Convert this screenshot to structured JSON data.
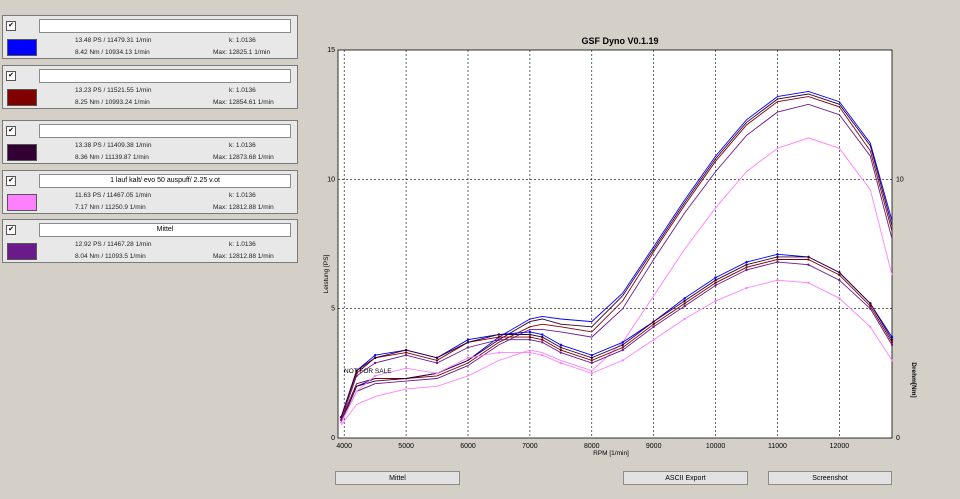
{
  "runs": [
    {
      "checked": "✔",
      "name": "",
      "color": "#0000ff",
      "ps": "13.48 PS / 11479.31 1/min",
      "nm": "8.42 Nm / 10934.13 1/min",
      "k": "k: 1.0136",
      "max": "Max: 12825.1 1/min"
    },
    {
      "checked": "✔",
      "name": "",
      "color": "#800000",
      "ps": "13.23 PS / 11521.55 1/min",
      "nm": "8.25 Nm / 10993.24 1/min",
      "k": "k: 1.0136",
      "max": "Max: 12854.61 1/min"
    },
    {
      "checked": "✔",
      "name": "",
      "color": "#330033",
      "ps": "13.38 PS / 11409.38 1/min",
      "nm": "8.36 Nm / 11139.87 1/min",
      "k": "k: 1.0136",
      "max": "Max: 12873.68 1/min"
    },
    {
      "checked": "✔",
      "name": "1 lauf kalt/ evo 50 auspuff/ 2.25 v.ot",
      "color": "#ff80ff",
      "ps": "11.63 PS / 11467.05 1/min",
      "nm": "7.17 Nm / 11250.9 1/min",
      "k": "k: 1.0136",
      "max": "Max: 12812.88 1/min"
    },
    {
      "checked": "✔",
      "name": "Mittel",
      "color": "#6a1a8a",
      "ps": "12.92 PS / 11467.28 1/min",
      "nm": "8.04 Nm / 11093.5 1/min",
      "k": "k: 1.0136",
      "max": "Max: 12812.88 1/min"
    }
  ],
  "buttons": {
    "mittel": "Mittel",
    "ascii": "ASCII Export",
    "screenshot": "Screenshot"
  },
  "chart_data": {
    "type": "line",
    "title": "GSF Dyno V0.1.19",
    "xlabel": "RPM [1/min]",
    "ylabel": "Leistung [PS]",
    "y2label": "Drehm[Nm]",
    "annotation": "NOT FOR SALE",
    "xlim": [
      3900,
      12850
    ],
    "ylim": [
      0,
      15
    ],
    "x_ticks": [
      4000,
      5000,
      6000,
      7000,
      8000,
      9000,
      10000,
      11000,
      12000
    ],
    "y_ticks": [
      0,
      5,
      10,
      15
    ],
    "y2_ticks": [
      0,
      10
    ],
    "grid": true,
    "x": [
      3950,
      4200,
      4500,
      5000,
      5500,
      6000,
      6500,
      7000,
      7200,
      7500,
      8000,
      8500,
      9000,
      9500,
      10000,
      10500,
      11000,
      11500,
      12000,
      12500,
      12850
    ],
    "power_series": [
      {
        "color": "#0000ff",
        "values": [
          0.6,
          2.0,
          2.3,
          2.3,
          2.5,
          3.0,
          3.9,
          4.6,
          4.7,
          4.6,
          4.5,
          5.6,
          7.4,
          9.2,
          10.9,
          12.3,
          13.2,
          13.4,
          13.0,
          11.4,
          8.4
        ]
      },
      {
        "color": "#800000",
        "values": [
          0.7,
          2.1,
          2.3,
          2.3,
          2.4,
          2.9,
          3.7,
          4.3,
          4.4,
          4.3,
          4.1,
          5.3,
          7.2,
          9.0,
          10.7,
          12.1,
          13.0,
          13.2,
          12.8,
          11.1,
          8.0
        ]
      },
      {
        "color": "#330033",
        "values": [
          0.6,
          2.0,
          2.2,
          2.3,
          2.5,
          3.0,
          3.8,
          4.5,
          4.6,
          4.4,
          4.3,
          5.5,
          7.3,
          9.1,
          10.8,
          12.2,
          13.1,
          13.3,
          12.9,
          11.3,
          8.2
        ]
      },
      {
        "color": "#ff80ff",
        "values": [
          0.5,
          1.3,
          1.6,
          1.9,
          2.0,
          2.4,
          3.0,
          3.4,
          3.3,
          3.0,
          2.6,
          3.7,
          5.5,
          7.3,
          8.9,
          10.3,
          11.2,
          11.6,
          11.2,
          9.6,
          6.3
        ]
      },
      {
        "color": "#6a1a8a",
        "values": [
          0.6,
          1.8,
          2.1,
          2.2,
          2.3,
          2.8,
          3.6,
          4.2,
          4.2,
          4.1,
          3.9,
          5.0,
          6.9,
          8.7,
          10.3,
          11.7,
          12.6,
          12.9,
          12.5,
          10.9,
          7.7
        ]
      }
    ],
    "torque_series": [
      {
        "color": "#0000ff",
        "values": [
          0.8,
          2.6,
          3.2,
          3.4,
          3.1,
          3.8,
          4.0,
          4.1,
          4.0,
          3.6,
          3.2,
          3.7,
          4.5,
          5.4,
          6.2,
          6.8,
          7.1,
          7.0,
          6.4,
          5.2,
          3.9
        ]
      },
      {
        "color": "#800000",
        "values": [
          0.8,
          2.5,
          3.1,
          3.3,
          3.0,
          3.7,
          3.9,
          3.9,
          3.8,
          3.4,
          3.0,
          3.5,
          4.4,
          5.2,
          6.0,
          6.6,
          6.9,
          6.9,
          6.3,
          5.1,
          3.7
        ]
      },
      {
        "color": "#330033",
        "values": [
          0.8,
          2.6,
          3.1,
          3.4,
          3.1,
          3.7,
          4.0,
          4.0,
          3.9,
          3.5,
          3.1,
          3.6,
          4.5,
          5.3,
          6.1,
          6.7,
          7.0,
          7.0,
          6.4,
          5.2,
          3.8
        ]
      },
      {
        "color": "#ff80ff",
        "values": [
          0.6,
          1.8,
          2.4,
          2.7,
          2.5,
          3.1,
          3.3,
          3.3,
          3.2,
          2.9,
          2.5,
          3.0,
          3.8,
          4.6,
          5.3,
          5.8,
          6.1,
          6.0,
          5.4,
          4.3,
          3.0
        ]
      },
      {
        "color": "#6a1a8a",
        "values": [
          0.7,
          2.4,
          2.9,
          3.2,
          2.9,
          3.5,
          3.8,
          3.8,
          3.7,
          3.3,
          2.9,
          3.4,
          4.3,
          5.1,
          5.9,
          6.5,
          6.8,
          6.7,
          6.1,
          5.0,
          3.6
        ]
      }
    ]
  }
}
